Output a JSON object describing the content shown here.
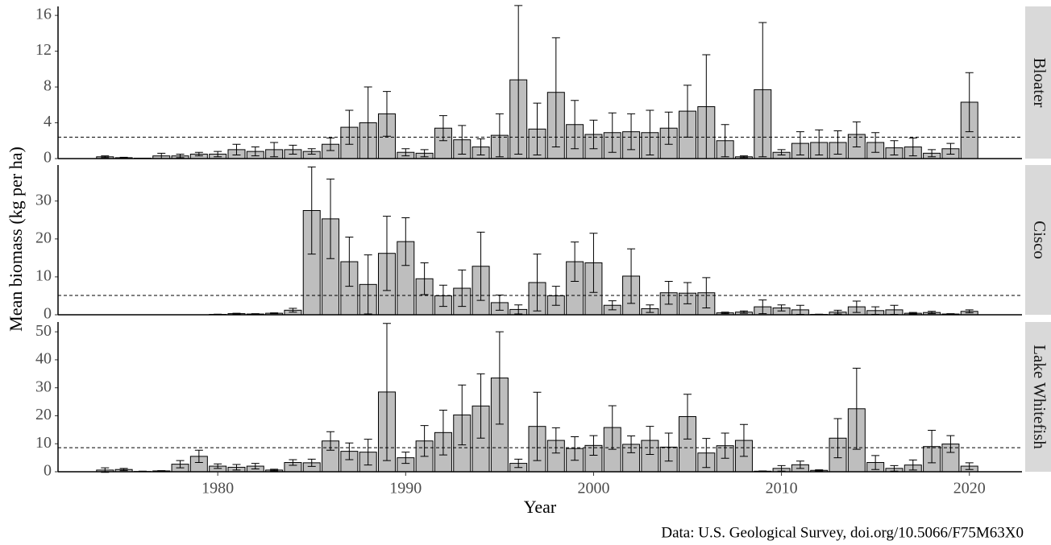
{
  "shared": {
    "ylabel": "Mean biomass (kg per ha)",
    "xlabel": "Year",
    "caption": "Data: U.S. Geological Survey, doi.org/10.5066/F75M63X0",
    "xlim": [
      1971.5,
      2022.8
    ],
    "xticks": [
      1980,
      1990,
      2000,
      2010,
      2020
    ]
  },
  "chart_data": [
    {
      "type": "bar",
      "title": "Bloater",
      "color": "#bebebe",
      "ylim": [
        0,
        17
      ],
      "yticks": [
        0,
        4,
        8,
        12,
        16
      ],
      "hline": 2.4,
      "x": [
        1974,
        1975,
        1976,
        1977,
        1978,
        1979,
        1980,
        1981,
        1982,
        1983,
        1984,
        1985,
        1986,
        1987,
        1988,
        1989,
        1990,
        1991,
        1992,
        1993,
        1994,
        1995,
        1996,
        1997,
        1998,
        1999,
        2000,
        2001,
        2002,
        2003,
        2004,
        2005,
        2006,
        2007,
        2008,
        2009,
        2010,
        2011,
        2012,
        2013,
        2014,
        2015,
        2016,
        2017,
        2018,
        2019,
        2020
      ],
      "values": [
        0.2,
        0.1,
        0.05,
        0.3,
        0.3,
        0.5,
        0.5,
        1.0,
        0.8,
        1.0,
        1.0,
        0.8,
        1.6,
        3.5,
        4.0,
        5.0,
        0.7,
        0.6,
        3.4,
        2.1,
        1.3,
        2.6,
        8.8,
        3.3,
        7.4,
        3.8,
        2.7,
        2.9,
        3.0,
        2.9,
        3.4,
        5.3,
        5.8,
        2.0,
        0.2,
        7.7,
        0.7,
        1.7,
        1.8,
        1.8,
        2.7,
        1.8,
        1.2,
        1.3,
        0.6,
        1.1,
        6.3
      ],
      "errors": [
        0.1,
        0.05,
        0,
        0.3,
        0.2,
        0.2,
        0.3,
        0.6,
        0.5,
        0.8,
        0.5,
        0.3,
        0.7,
        1.9,
        4,
        2.5,
        0.4,
        0.4,
        1.4,
        1.6,
        0.9,
        2.4,
        8.3,
        2.9,
        6.1,
        2.7,
        1.6,
        2.2,
        2.0,
        2.5,
        1.8,
        2.9,
        5.8,
        1.8,
        0.1,
        7.5,
        0.3,
        1.3,
        1.4,
        1.3,
        1.4,
        1.1,
        0.8,
        1.0,
        0.4,
        0.6,
        3.3
      ]
    },
    {
      "type": "bar",
      "title": "Cisco",
      "color": "#bebebe",
      "ylim": [
        0,
        39.5
      ],
      "yticks": [
        0,
        10,
        20,
        30
      ],
      "hline": 5.1,
      "x": [
        1974,
        1975,
        1976,
        1977,
        1978,
        1979,
        1980,
        1981,
        1982,
        1983,
        1984,
        1985,
        1986,
        1987,
        1988,
        1989,
        1990,
        1991,
        1992,
        1993,
        1994,
        1995,
        1996,
        1997,
        1998,
        1999,
        2000,
        2001,
        2002,
        2003,
        2004,
        2005,
        2006,
        2007,
        2008,
        2009,
        2010,
        2011,
        2012,
        2013,
        2014,
        2015,
        2016,
        2017,
        2018,
        2019,
        2020
      ],
      "values": [
        0,
        0,
        0,
        0,
        0,
        0,
        0.1,
        0.3,
        0.2,
        0.4,
        1.2,
        27.5,
        25.3,
        14,
        8,
        16.2,
        19.3,
        9.5,
        5,
        7,
        12.8,
        3.2,
        1.4,
        8.5,
        5,
        14,
        13.7,
        2.5,
        10.2,
        1.6,
        5.8,
        5.7,
        5.8,
        0.5,
        0.7,
        2.1,
        1.8,
        1.3,
        0.1,
        0.7,
        2.1,
        1.1,
        1.3,
        0.4,
        0.6,
        0.2,
        0.9
      ],
      "errors": [
        0,
        0,
        0,
        0,
        0,
        0,
        0.05,
        0.1,
        0.1,
        0.1,
        0.5,
        11.5,
        10.5,
        6.5,
        7.8,
        9.8,
        6.3,
        4.2,
        2.8,
        4.8,
        9,
        2,
        1.2,
        7.5,
        2.5,
        5.2,
        7.8,
        1.2,
        7.2,
        1,
        3,
        2.8,
        4,
        0.2,
        0.3,
        1.8,
        0.8,
        1.2,
        0.05,
        0.5,
        1.5,
        1,
        1.2,
        0.2,
        0.3,
        0.1,
        0.4
      ]
    },
    {
      "type": "bar",
      "title": "Lake Whitefish",
      "color": "#bebebe",
      "ylim": [
        0,
        53.5
      ],
      "yticks": [
        0,
        10,
        20,
        30,
        40,
        50
      ],
      "hline": 8.6,
      "x": [
        1974,
        1975,
        1976,
        1977,
        1978,
        1979,
        1980,
        1981,
        1982,
        1983,
        1984,
        1985,
        1986,
        1987,
        1988,
        1989,
        1990,
        1991,
        1992,
        1993,
        1994,
        1995,
        1996,
        1997,
        1998,
        1999,
        2000,
        2001,
        2002,
        2003,
        2004,
        2005,
        2006,
        2007,
        2008,
        2009,
        2010,
        2011,
        2012,
        2013,
        2014,
        2015,
        2016,
        2017,
        2018,
        2019,
        2020
      ],
      "values": [
        0.6,
        0.8,
        0.1,
        0.3,
        2.7,
        5.5,
        2,
        1.6,
        2,
        0.6,
        3.3,
        3.2,
        11,
        7.3,
        7,
        28.5,
        5,
        11,
        14,
        20.3,
        23.5,
        33.5,
        3,
        16.2,
        11.2,
        8.3,
        9.4,
        15.8,
        9.8,
        11.2,
        8.8,
        19.7,
        6.7,
        9.3,
        11.2,
        0.2,
        1.2,
        2.5,
        0.5,
        12,
        22.5,
        3.3,
        1.2,
        2.4,
        9,
        9.9,
        2
      ],
      "errors": [
        0.8,
        0.4,
        0.1,
        0.1,
        1.3,
        2.2,
        0.8,
        1,
        1,
        0.3,
        1,
        1.3,
        3.3,
        3,
        4.6,
        24.5,
        2,
        5.5,
        8,
        10.7,
        11.5,
        16.5,
        1.5,
        12.2,
        4.5,
        4.2,
        3.5,
        7.8,
        3,
        5,
        5,
        8,
        5.2,
        4.5,
        5.7,
        0.1,
        1,
        1.3,
        0.2,
        7,
        14.5,
        2.5,
        1,
        1.8,
        5.8,
        3,
        1.2
      ]
    }
  ]
}
